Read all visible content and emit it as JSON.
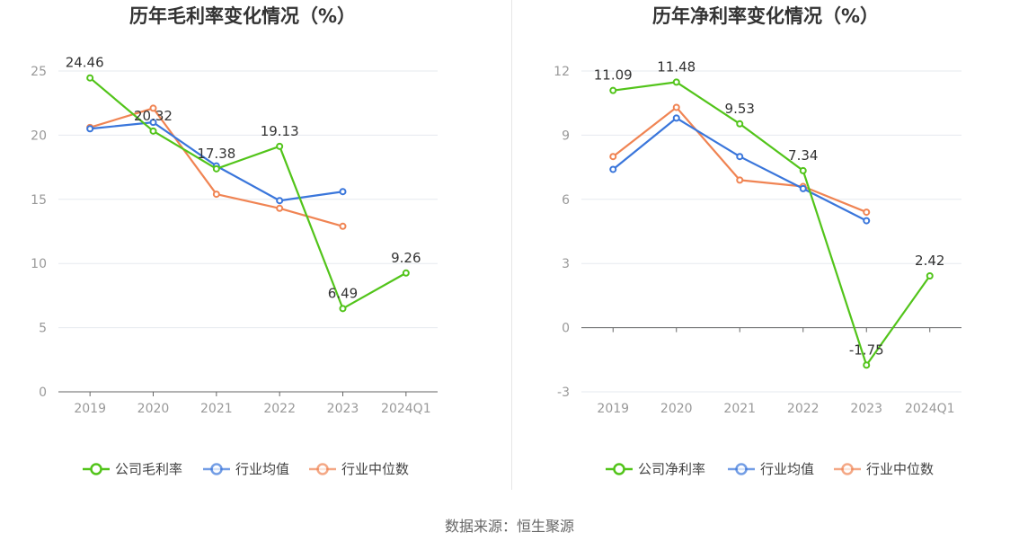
{
  "chart_data": [
    {
      "type": "line",
      "title": "历年毛利率变化情况（%）",
      "categories": [
        "2019",
        "2020",
        "2021",
        "2022",
        "2023",
        "2024Q1"
      ],
      "y_ticks": [
        0,
        5,
        10,
        15,
        20,
        25
      ],
      "ylim": [
        0,
        25
      ],
      "series": [
        {
          "name": "公司毛利率",
          "color": "#52c41a",
          "values": [
            24.46,
            20.32,
            17.38,
            19.13,
            6.49,
            9.26
          ],
          "labels": [
            "24.46",
            "20.32",
            "17.38",
            "19.13",
            "6.49",
            "9.26"
          ]
        },
        {
          "name": "行业均值",
          "color": "#3a76db",
          "values": [
            20.5,
            21.0,
            17.6,
            14.9,
            15.6,
            null
          ]
        },
        {
          "name": "行业中位数",
          "color": "#f08453",
          "values": [
            20.6,
            22.1,
            15.4,
            14.3,
            12.9,
            null
          ]
        }
      ]
    },
    {
      "type": "line",
      "title": "历年净利率变化情况（%）",
      "categories": [
        "2019",
        "2020",
        "2021",
        "2022",
        "2023",
        "2024Q1"
      ],
      "y_ticks": [
        -3,
        0,
        3,
        6,
        9,
        12
      ],
      "ylim": [
        -3,
        12
      ],
      "series": [
        {
          "name": "公司净利率",
          "color": "#52c41a",
          "values": [
            11.09,
            11.48,
            9.53,
            7.34,
            -1.75,
            2.42
          ],
          "labels": [
            "11.09",
            "11.48",
            "9.53",
            "7.34",
            "-1.75",
            "2.42"
          ]
        },
        {
          "name": "行业均值",
          "color": "#3a76db",
          "values": [
            7.4,
            9.8,
            8.0,
            6.5,
            5.0,
            null
          ]
        },
        {
          "name": "行业中位数",
          "color": "#f08453",
          "values": [
            8.0,
            10.3,
            6.9,
            6.6,
            5.4,
            null
          ]
        }
      ]
    }
  ],
  "footer": "数据来源：恒生聚源"
}
